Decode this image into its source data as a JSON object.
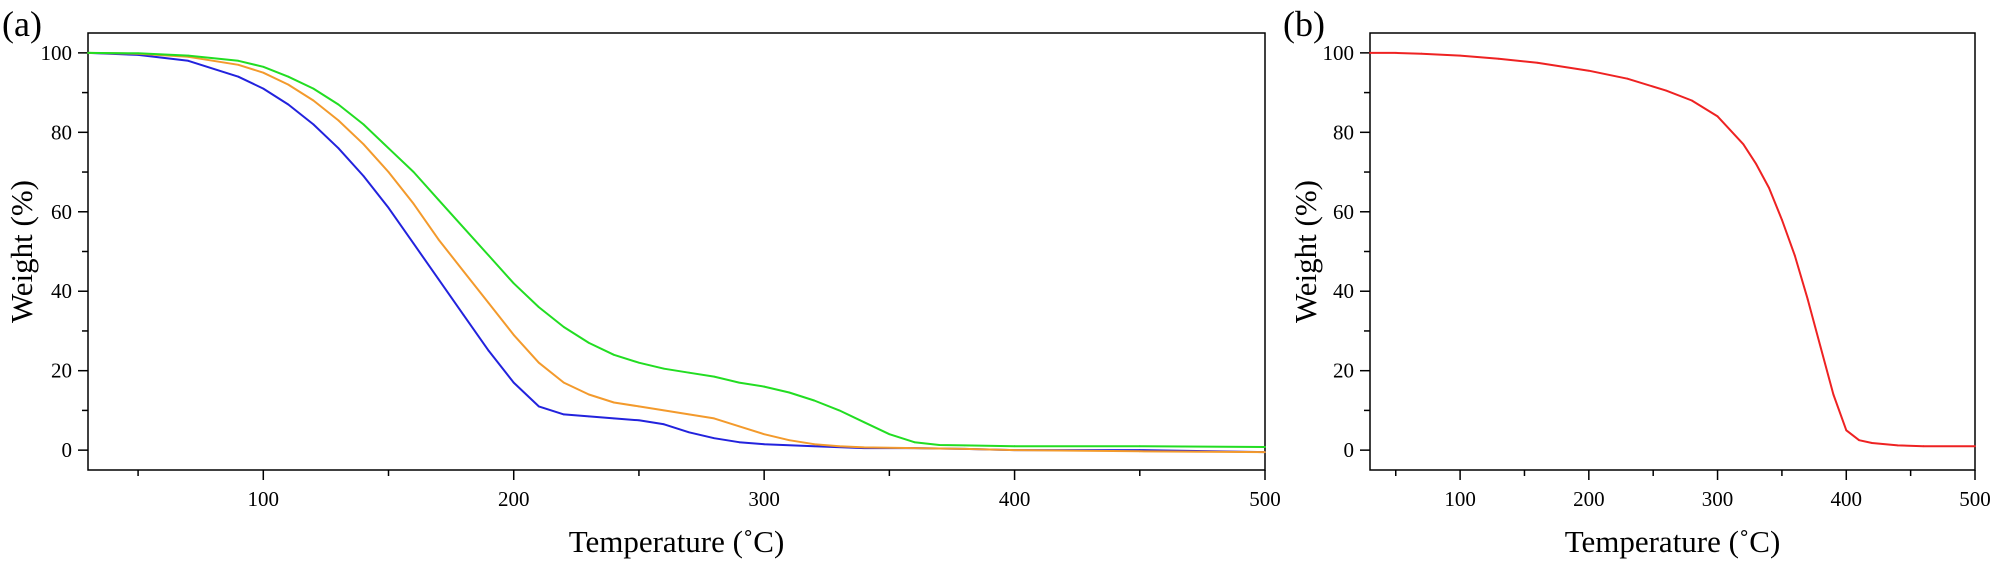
{
  "chart_data": [
    {
      "panel_label": "(a)",
      "type": "line",
      "xlabel": "Temperature (˚C)",
      "ylabel": "Weight (%)",
      "xlim": [
        30,
        500
      ],
      "ylim": [
        -5,
        105
      ],
      "xticks": [
        100,
        200,
        300,
        400,
        500
      ],
      "yticks": [
        0,
        20,
        40,
        60,
        80,
        100
      ],
      "grid": false,
      "series": [
        {
          "color": "#2222dd",
          "x": [
            30,
            50,
            70,
            90,
            100,
            110,
            120,
            130,
            140,
            150,
            160,
            170,
            180,
            190,
            200,
            210,
            220,
            230,
            240,
            250,
            260,
            270,
            280,
            290,
            300,
            320,
            340,
            360,
            380,
            400,
            450,
            500
          ],
          "y": [
            100,
            99.5,
            98,
            94,
            91,
            87,
            82,
            76,
            69,
            61,
            52,
            43,
            34,
            25,
            17,
            11,
            9,
            8.5,
            8,
            7.5,
            6.5,
            4.5,
            3,
            2,
            1.5,
            1,
            0.5,
            0.5,
            0.3,
            0,
            0,
            -0.5
          ]
        },
        {
          "color": "#f39a2c",
          "x": [
            30,
            50,
            70,
            90,
            100,
            110,
            120,
            130,
            140,
            150,
            160,
            170,
            180,
            190,
            200,
            210,
            220,
            230,
            240,
            250,
            260,
            270,
            280,
            290,
            300,
            310,
            320,
            330,
            340,
            360,
            380,
            400,
            450,
            500
          ],
          "y": [
            100,
            99.8,
            99,
            97,
            95,
            92,
            88,
            83,
            77,
            70,
            62,
            53,
            45,
            37,
            29,
            22,
            17,
            14,
            12,
            11,
            10,
            9,
            8,
            6,
            4,
            2.5,
            1.5,
            1,
            0.7,
            0.5,
            0.3,
            0,
            -0.3,
            -0.5
          ]
        },
        {
          "color": "#22dd22",
          "x": [
            30,
            50,
            70,
            90,
            100,
            110,
            120,
            130,
            140,
            150,
            160,
            170,
            180,
            190,
            200,
            210,
            220,
            230,
            240,
            250,
            260,
            270,
            280,
            290,
            300,
            310,
            320,
            330,
            340,
            350,
            360,
            370,
            380,
            400,
            450,
            500
          ],
          "y": [
            100,
            99.9,
            99.3,
            98,
            96.5,
            94,
            91,
            87,
            82,
            76,
            70,
            63,
            56,
            49,
            42,
            36,
            31,
            27,
            24,
            22,
            20.5,
            19.5,
            18.5,
            17,
            16,
            14.5,
            12.5,
            10,
            7,
            4,
            2,
            1.3,
            1.2,
            1,
            1,
            0.8
          ]
        }
      ]
    },
    {
      "panel_label": "(b)",
      "type": "line",
      "xlabel": "Temperature (˚C)",
      "ylabel": "Weight (%)",
      "xlim": [
        30,
        500
      ],
      "ylim": [
        -5,
        105
      ],
      "xticks": [
        100,
        200,
        300,
        400,
        500
      ],
      "yticks": [
        0,
        20,
        40,
        60,
        80,
        100
      ],
      "grid": false,
      "series": [
        {
          "color": "#ee2222",
          "x": [
            30,
            50,
            70,
            100,
            130,
            160,
            200,
            230,
            260,
            280,
            300,
            320,
            330,
            340,
            350,
            360,
            370,
            380,
            390,
            400,
            410,
            420,
            440,
            460,
            500
          ],
          "y": [
            100,
            100,
            99.8,
            99.3,
            98.5,
            97.5,
            95.5,
            93.5,
            90.5,
            88,
            84,
            77,
            72,
            66,
            58,
            49,
            38,
            26,
            14,
            5,
            2.5,
            1.8,
            1.2,
            1,
            1
          ]
        }
      ]
    }
  ]
}
